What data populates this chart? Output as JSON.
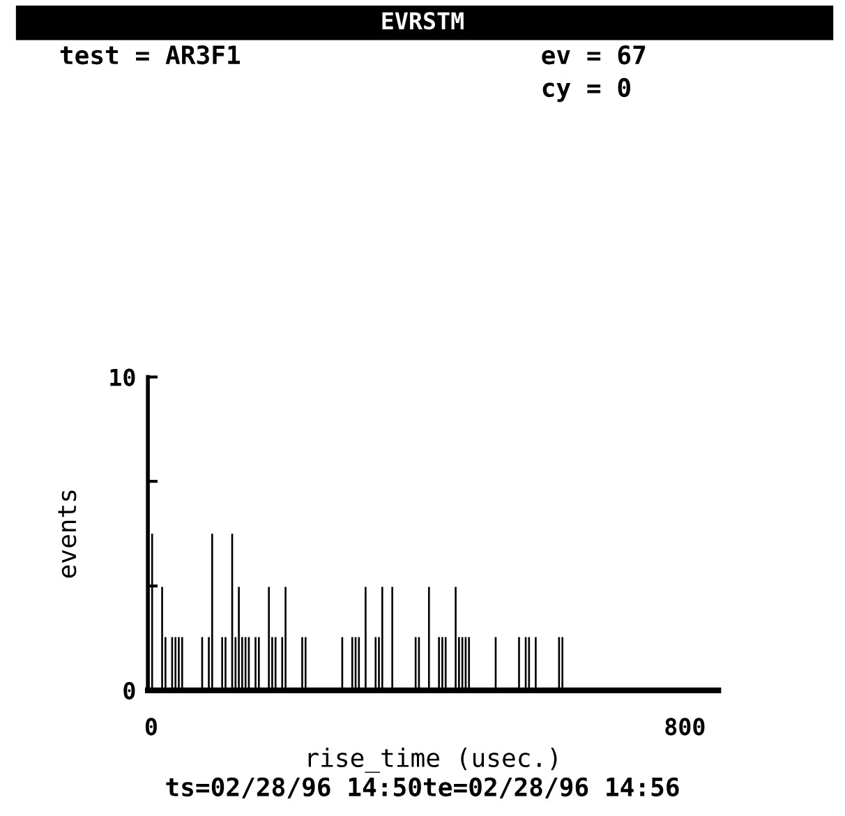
{
  "chart_data": {
    "type": "histogram",
    "title": "EVRSTM",
    "xlabel": "rise_time (usec.)",
    "ylabel": "events",
    "annotations": [
      "test = AR3F1",
      "ev = 67",
      "cy = 0",
      "ts=02/28/96 14:50te=02/28/96 14:56"
    ],
    "color": "#000000",
    "bins": [
      0,
      5,
      10,
      15,
      20,
      25,
      30,
      35,
      40,
      45,
      50,
      55,
      60,
      65,
      70,
      75,
      80,
      85,
      90,
      95,
      100,
      105,
      110,
      115,
      120,
      125,
      130,
      135,
      140,
      145,
      150,
      155,
      160,
      165,
      170,
      175,
      180,
      185,
      190,
      195,
      200,
      205,
      210,
      215,
      220,
      225,
      230,
      235,
      240,
      245,
      250,
      255,
      260,
      265,
      270,
      275,
      280,
      285,
      290,
      295,
      300,
      305,
      310,
      315,
      320,
      325,
      330,
      335,
      340,
      345,
      350,
      355,
      360,
      365,
      370,
      375,
      380,
      385,
      390,
      395,
      400,
      405,
      410,
      415,
      420,
      425,
      430,
      435,
      440,
      445,
      450,
      455,
      460,
      465,
      470,
      475,
      480,
      485,
      490,
      495,
      500,
      505,
      510,
      515,
      520,
      525,
      530,
      535,
      540,
      545,
      550,
      555,
      560,
      565,
      570,
      575,
      580,
      585,
      590,
      595,
      600,
      605,
      610,
      615,
      620
    ],
    "values": [
      5,
      0,
      0,
      3.3,
      1.7,
      0,
      1.7,
      1.7,
      1.7,
      1.7,
      0,
      0,
      0,
      0,
      0,
      1.7,
      0,
      1.7,
      5,
      0,
      0,
      1.7,
      1.7,
      0,
      5,
      1.7,
      3.3,
      1.7,
      1.7,
      1.7,
      0,
      1.7,
      1.7,
      0,
      0,
      3.3,
      1.7,
      1.7,
      0,
      1.7,
      3.3,
      0,
      0,
      0,
      0,
      1.7,
      1.7,
      0,
      0,
      0,
      0,
      0,
      0,
      0,
      0,
      0,
      0,
      1.7,
      0,
      0,
      1.7,
      1.7,
      1.7,
      0,
      3.3,
      0,
      0,
      1.7,
      1.7,
      3.3,
      0,
      0,
      3.3,
      0,
      0,
      0,
      0,
      0,
      0,
      1.7,
      1.7,
      0,
      0,
      3.3,
      0,
      0,
      1.7,
      1.7,
      1.7,
      0,
      0,
      3.3,
      1.7,
      1.7,
      1.7,
      1.7,
      0,
      0,
      0,
      0,
      0,
      0,
      0,
      1.7,
      0,
      0,
      0,
      0,
      0,
      0,
      1.7,
      0,
      1.7,
      1.7,
      0,
      1.7,
      0,
      0,
      0,
      0,
      0,
      0,
      1.7,
      1.7
    ],
    "xlim": [
      -5,
      850
    ],
    "xticks": [
      0,
      800
    ],
    "ylim": [
      0,
      10
    ],
    "yticks": [
      0,
      {
        "value": 3.33,
        "label": null
      },
      {
        "value": 6.67,
        "label": null
      },
      10
    ],
    "grid": false,
    "legend": false
  }
}
